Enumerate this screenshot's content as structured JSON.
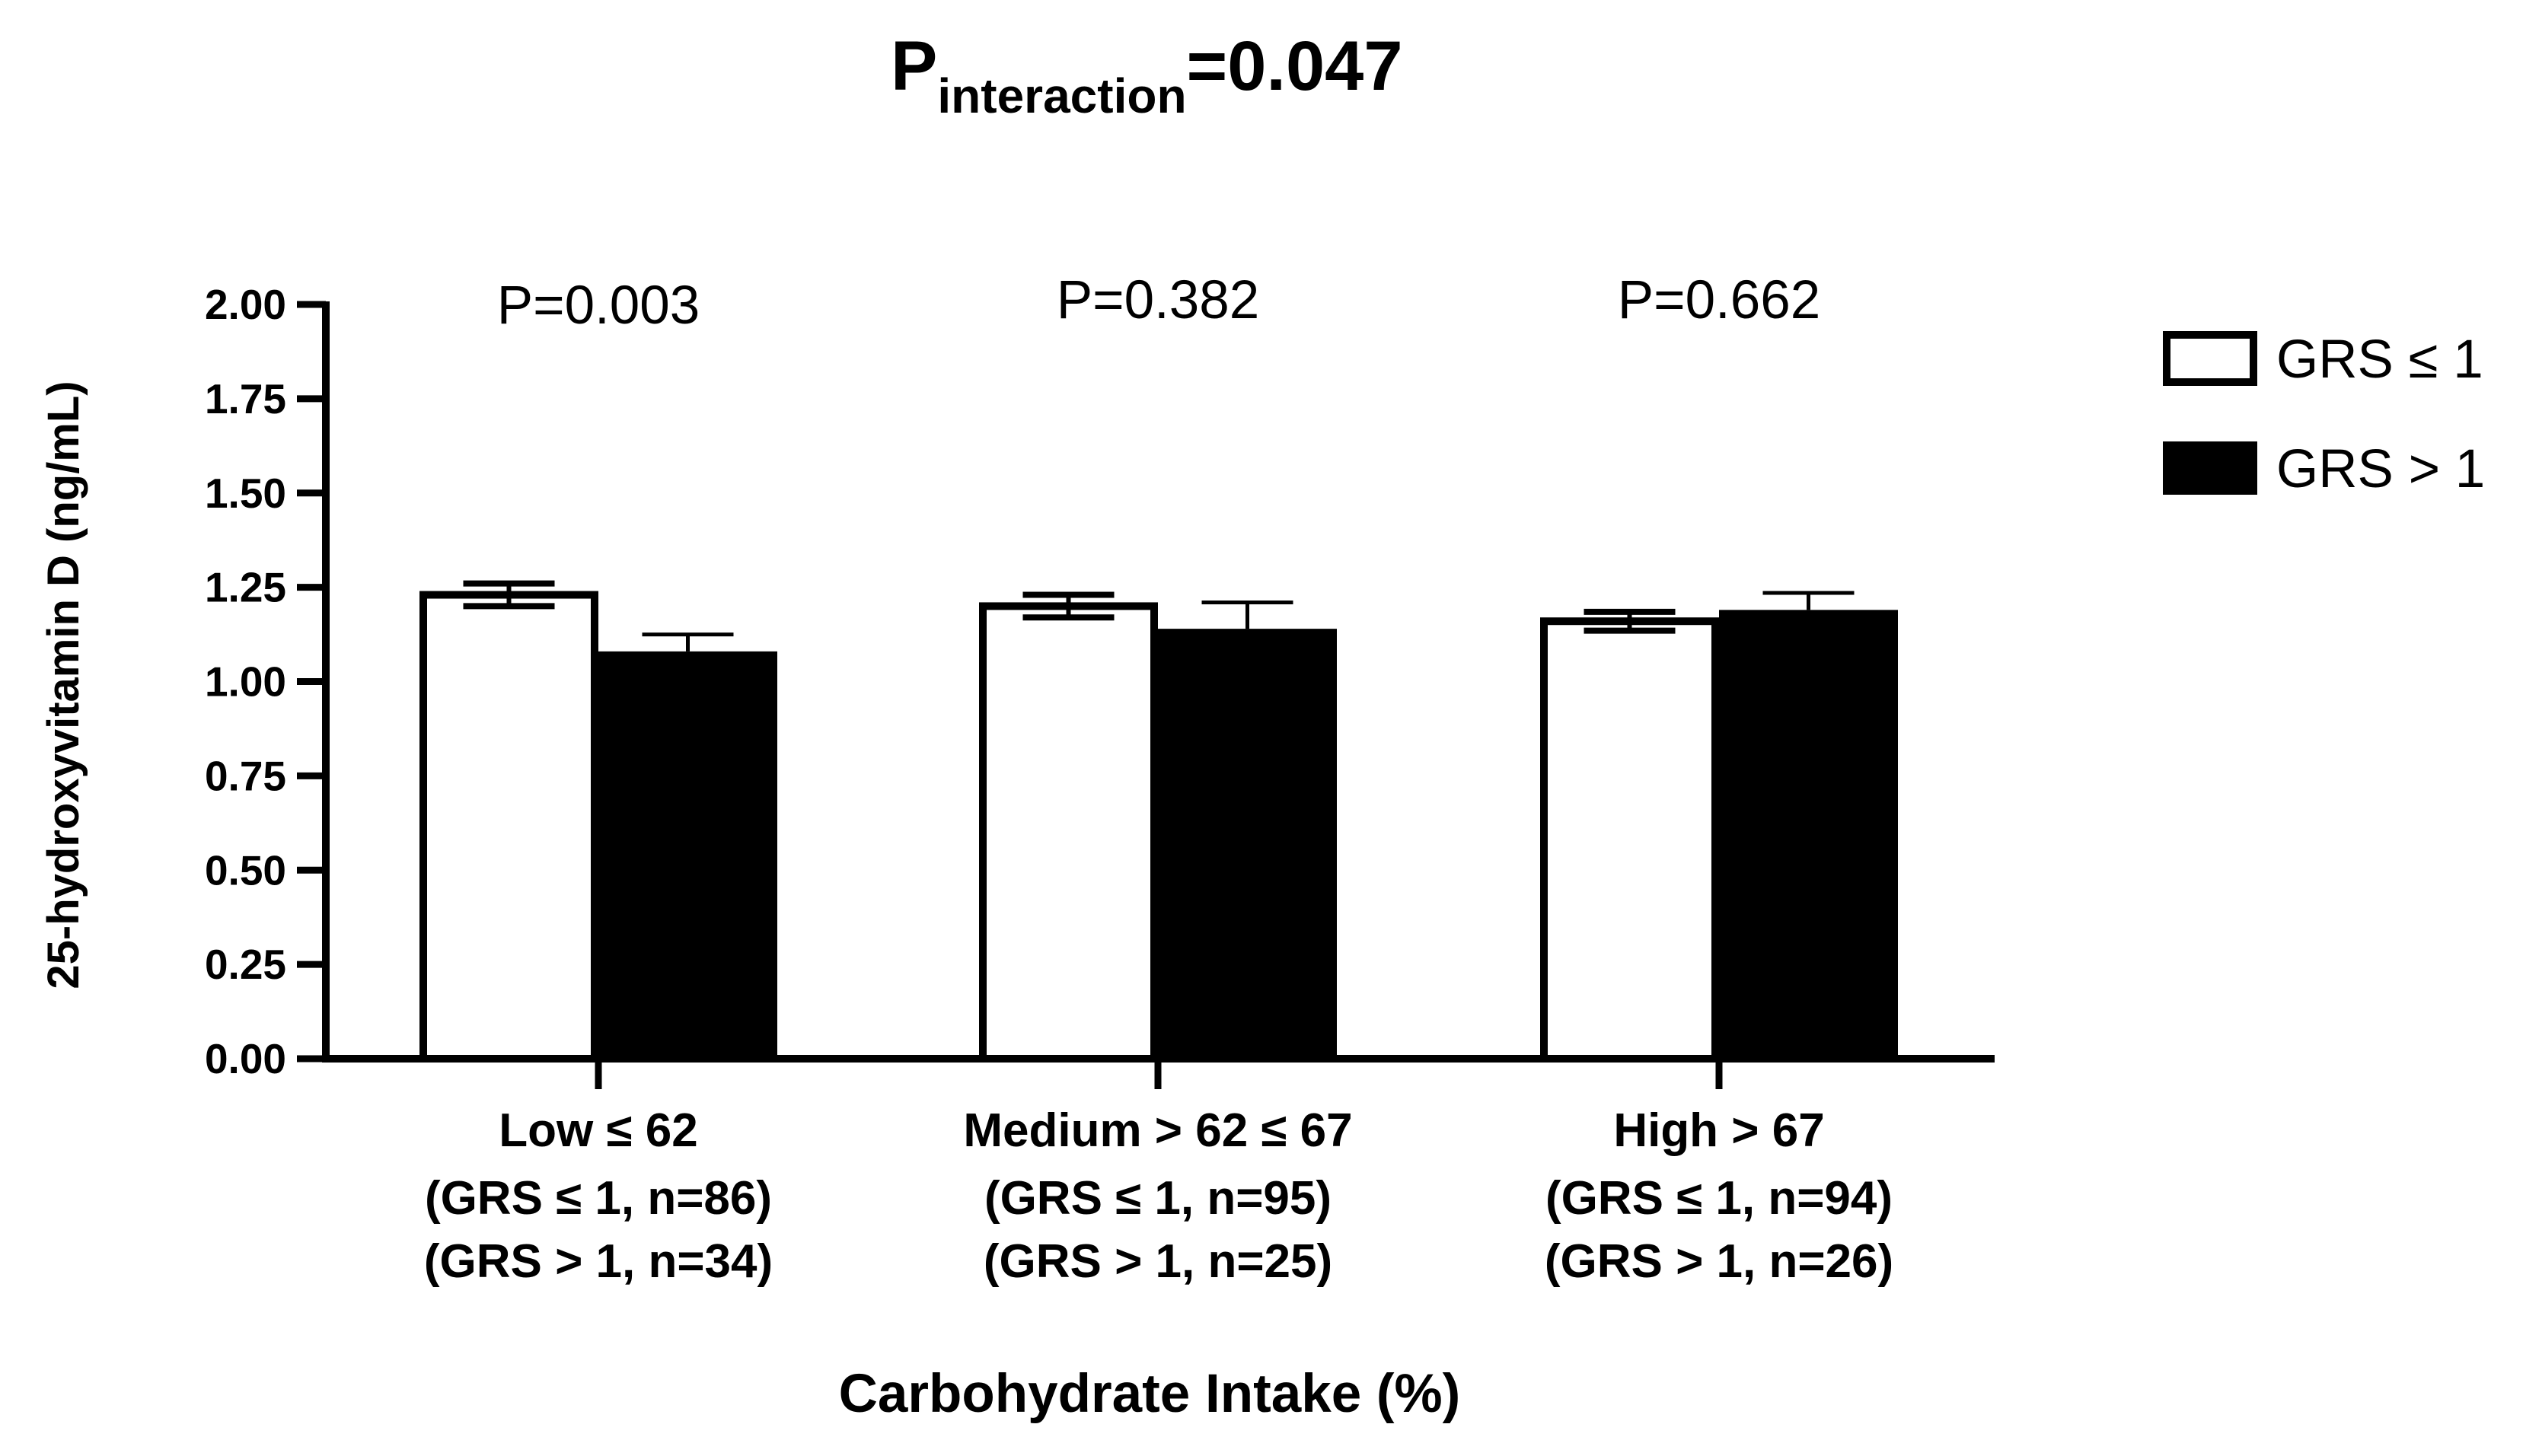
{
  "chart_data": {
    "type": "bar",
    "title": {
      "main": "P",
      "subscript": "interaction",
      "suffix": "=0.047"
    },
    "ylabel": "25-hydroxyvitamin D (ng/mL)",
    "xlabel": "Carbohydrate Intake (%)",
    "ylim": [
      0,
      2.0
    ],
    "yticks": [
      "0.00",
      "0.25",
      "0.50",
      "0.75",
      "1.00",
      "1.25",
      "1.50",
      "1.75",
      "2.00"
    ],
    "ytick_values": [
      0,
      0.25,
      0.5,
      0.75,
      1.0,
      1.25,
      1.5,
      1.75,
      2.0
    ],
    "categories": [
      {
        "lines": [
          "Low ≤ 62",
          "(GRS ≤ 1, n=86)",
          "(GRS > 1, n=34)"
        ],
        "p_value": "P=0.003"
      },
      {
        "lines": [
          "Medium > 62 ≤ 67",
          "(GRS ≤ 1, n=95)",
          "(GRS > 1, n=25)"
        ],
        "p_value": "P=0.382"
      },
      {
        "lines": [
          "High > 67",
          "(GRS ≤ 1, n=94)",
          "(GRS > 1, n=26)"
        ],
        "p_value": "P=0.662"
      }
    ],
    "series": [
      {
        "name": "GRS ≤ 1",
        "fill": "#ffffff",
        "values": [
          1.23,
          1.2,
          1.16
        ],
        "errors": [
          0.03,
          0.03,
          0.025
        ]
      },
      {
        "name": "GRS > 1",
        "fill": "#000000",
        "values": [
          1.08,
          1.14,
          1.19
        ],
        "errors": [
          0.045,
          0.07,
          0.045
        ]
      }
    ],
    "legend": {
      "position": "top-right",
      "items": [
        "GRS ≤ 1",
        "GRS > 1"
      ]
    },
    "colors": {
      "axis": "#000000",
      "background": "#ffffff"
    }
  }
}
